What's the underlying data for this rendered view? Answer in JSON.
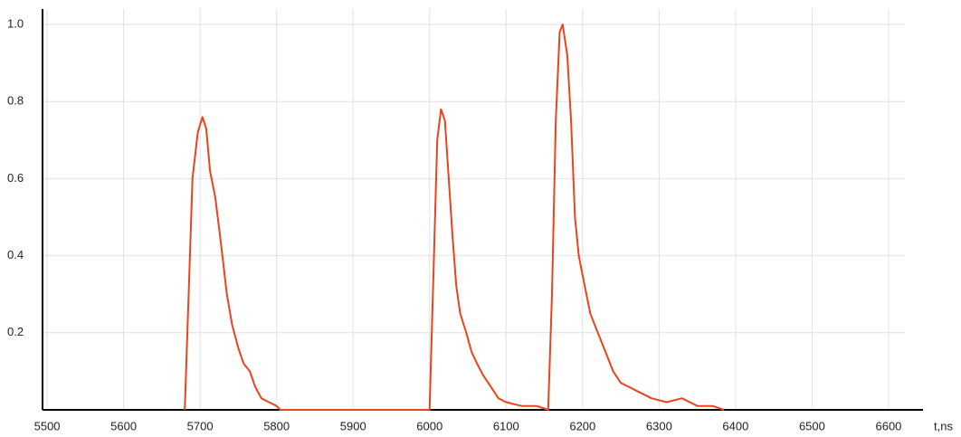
{
  "chart_data": {
    "type": "line",
    "x_label": "t,ns",
    "x": [
      5680,
      5685,
      5690,
      5697,
      5703,
      5708,
      5713,
      5720,
      5728,
      5735,
      5742,
      5750,
      5757,
      5765,
      5772,
      5780,
      5790,
      5800,
      5805,
      6000,
      6005,
      6010,
      6015,
      6020,
      6025,
      6030,
      6035,
      6040,
      6048,
      6055,
      6062,
      6070,
      6080,
      6090,
      6100,
      6120,
      6140,
      6155,
      6160,
      6165,
      6170,
      6174,
      6180,
      6185,
      6190,
      6195,
      6200,
      6210,
      6220,
      6230,
      6240,
      6250,
      6260,
      6270,
      6290,
      6310,
      6330,
      6350,
      6370,
      6385
    ],
    "series": [
      {
        "color": "#e8451e",
        "values": [
          0,
          0.3,
          0.6,
          0.72,
          0.76,
          0.73,
          0.62,
          0.55,
          0.42,
          0.3,
          0.22,
          0.16,
          0.12,
          0.1,
          0.06,
          0.03,
          0.02,
          0.01,
          0,
          0,
          0.35,
          0.7,
          0.78,
          0.75,
          0.6,
          0.45,
          0.32,
          0.25,
          0.2,
          0.15,
          0.12,
          0.09,
          0.06,
          0.03,
          0.02,
          0.01,
          0.01,
          0,
          0.3,
          0.75,
          0.98,
          1.0,
          0.92,
          0.75,
          0.5,
          0.4,
          0.35,
          0.25,
          0.2,
          0.15,
          0.1,
          0.07,
          0.06,
          0.05,
          0.03,
          0.02,
          0.03,
          0.01,
          0.01,
          0
        ]
      }
    ],
    "xlim": [
      5494,
      6645
    ],
    "ylim": [
      0,
      1.04
    ],
    "xticks": [
      5500,
      5600,
      5700,
      5800,
      5900,
      6000,
      6100,
      6200,
      6300,
      6400,
      6500,
      6600
    ],
    "yticks": [
      0.2,
      0.4,
      0.6,
      0.8,
      {
        "value": 1,
        "label": "1.0"
      }
    ],
    "grid": true
  }
}
